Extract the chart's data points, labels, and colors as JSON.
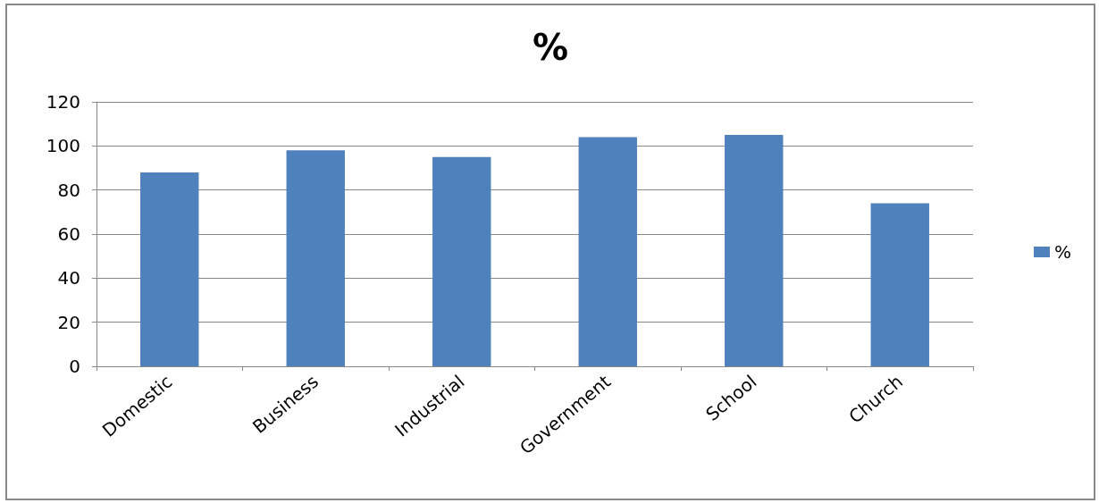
{
  "chart_data": {
    "type": "bar",
    "title": "%",
    "categories": [
      "Domestic",
      "Business",
      "Industrial",
      "Government",
      "School",
      "Church"
    ],
    "series": [
      {
        "name": "%",
        "color": "#4f81bd",
        "values": [
          88,
          98,
          95,
          104,
          105,
          74
        ]
      }
    ],
    "ylim": [
      0,
      120
    ],
    "yticks": [
      0,
      20,
      40,
      60,
      80,
      100,
      120
    ],
    "grid": "y",
    "legend": "right"
  }
}
